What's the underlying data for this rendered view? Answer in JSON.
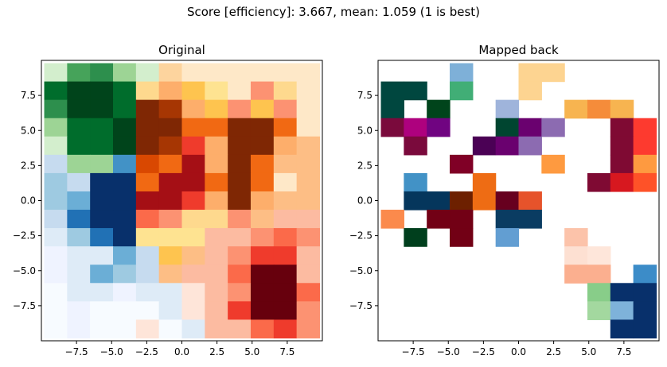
{
  "figure": {
    "title": "Score [efficiency]: 3.667, mean: 1.059 (1 is best)"
  },
  "chart_data": [
    {
      "type": "heatmap",
      "title": "Original",
      "xlim": [
        -10,
        10
      ],
      "ylim": [
        -10,
        10
      ],
      "xticks": [
        "-7.5",
        "-5.0",
        "-2.5",
        "0.0",
        "2.5",
        "5.0",
        "7.5"
      ],
      "yticks": [
        "7.5",
        "5.0",
        "2.5",
        "0.0",
        "-2.5",
        "-5.0",
        "-7.5"
      ],
      "grid": false,
      "colors": {
        "Y": "#d3eecd",
        "G": "#46a35a",
        "H": "#2d8f4d",
        "K": "#006d2c",
        "P": "#005a32",
        "X": "#00441b",
        "L": "#9dd495",
        "M": "#74c476",
        "O": "#fdd49e",
        "o": "#fee8c8",
        "E": "#fee5d9",
        "F": "#fdae6b",
        "J": "#f16913",
        "Z": "#d94801",
        "Q": "#a63603",
        "R": "#7f2704",
        "r": "#fc9272",
        "S": "#ef3b2c",
        "T": "#cb181d",
        "U": "#a50f15",
        "V": "#67000d",
        "W": "#fb6a4a",
        "u": "#fcbba1",
        "v": "#fff5eb",
        "w": "#fddbc7",
        "A": "#c6dbef",
        "B": "#9ecae1",
        "C": "#6baed6",
        "D": "#4292c6",
        "N": "#2171b5",
        "I": "#08306b",
        "e": "#deebf7",
        "f": "#eff3ff",
        "g": "#e5f5e0",
        "h": "#f7fbff",
        "c": "#fdbe85",
        "m": "#fee391",
        "n": "#fff7bc",
        "p": "#fed98e",
        "q": "#fec44f"
      },
      "grid_rows": [
        "YGHLYOoooooo",
        "KXXKpFqmorpo",
        "HXXKRQFqrqro",
        "LKKXRRJJRRJo",
        "YKKXRQSFRRFc",
        "ALLDZJUFRJcc",
        "BAIIJUUJRJoc",
        "BCIIUUSFRFcc",
        "ANIIWrpprcuu",
        "eBNImmmuurWr",
        "feeCAqcurSSu",
        "feCBAcuuWVVu",
        "heefeeEurVVW",
        "hfhhheEuSVVr",
        "hfhhEheuuWSr"
      ]
    },
    {
      "type": "heatmap",
      "title": "Mapped back",
      "xlim": [
        -10,
        10
      ],
      "ylim": [
        -10,
        10
      ],
      "xticks": [
        "-7.5",
        "-5.0",
        "-2.5",
        "0.0",
        "2.5",
        "5.0",
        "7.5"
      ],
      "yticks": [
        "7.5",
        "5.0",
        "2.5",
        "0.0",
        "-2.5",
        "-5.0",
        "-7.5"
      ],
      "grid": false,
      "colors": {
        "a": "#7eb0d8",
        "b": "#fdd491",
        "c": "#fde5a8",
        "d": "#00473f",
        "e": "#41ae76",
        "f": "#f7b450",
        "g": "#00441b",
        "h": "#9fb4db",
        "i": "#f58c3a",
        "j": "#7a0a3c",
        "k": "#ae017e",
        "l": "#700481",
        "m": "#004530",
        "n": "#6a016f",
        "o": "#8c6bb1",
        "p": "#7f0a33",
        "q": "#fd3a2f",
        "r": "#4b0155",
        "s": "#800026",
        "t": "#fe9a40",
        "u": "#4292c6",
        "v": "#ee6c14",
        "w": "#0a3c62",
        "x": "#6d2000",
        "y": "#67001f",
        "z": "#e6532b",
        "A": "#d7181f",
        "B": "#fd8e3c",
        "C": "#05365c",
        "D": "#fe5228",
        "E": "#fb8a4c",
        "F": "#720015",
        "G": "#629ed2",
        "H": "#fcc3aa",
        "I": "#fde0d2",
        "J": "#fee6da",
        "K": "#fbaf8f",
        "L": "#3c8cc8",
        "M": "#4c97c9",
        "N": "#fe9a3a",
        "O": "#88cd89",
        "P": "#08306b",
        "Q": "#ed6a14",
        "R": "#a3d89f",
        "S": "#7eb2da",
        "T": "#003f1d",
        "U": "#4593c9"
      },
      "grid_rows": [
        "...a..bb....",
        "dd.e..b.....",
        "d.g..h..fif.",
        "jkl..mno..pq",
        ".j..rno...pq",
        "...s...t..pt",
        ".u..v....pAD",
        ".CCxvyz.....",
        "E.FF.ww.....",
        ".T.F.G..H...",
        "........IJ..",
        "........KK.LMN",
        ".........OPPQ",
        ".........RSPP",
        "..........PP."
      ]
    }
  ]
}
